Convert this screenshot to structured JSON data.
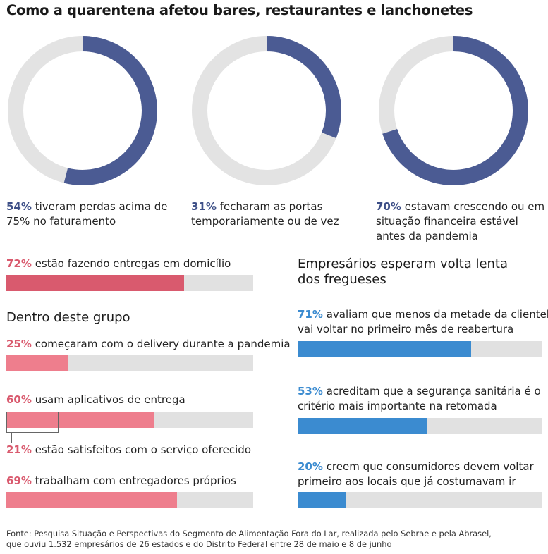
{
  "title": "Como a quarentena afetou bares, restaurantes e lanchonetes",
  "colors": {
    "donut_fill": "#4b5b93",
    "donut_track": "#e3e3e3",
    "delivery_main": "#d95a6e",
    "delivery_sub": "#ee7e8d",
    "delivery_pct": "#d95a6e",
    "owners_bar": "#3b8bd0",
    "owners_pct": "#3b8bd0",
    "donut_pct": "#3d4f87",
    "track": "#e1e1e1"
  },
  "chart_data": [
    {
      "type": "pie",
      "variant": "donut",
      "series": [
        {
          "value": 54,
          "pct": "54%",
          "label": "tiveram perdas acima de 75% no faturamento"
        },
        {
          "value": 31,
          "pct": "31%",
          "label": "fecharam as portas temporariamente ou de vez"
        },
        {
          "value": 70,
          "pct": "70%",
          "label": "estavam crescendo ou em situação financeira estável antes da pandemia"
        }
      ]
    },
    {
      "type": "bar",
      "orientation": "horizontal",
      "xlim": [
        0,
        100
      ],
      "main": {
        "value": 72,
        "pct": "72%",
        "label": "estão fazendo entregas em domicílio"
      },
      "subgroup_heading": "Dentro deste grupo",
      "items": [
        {
          "value": 25,
          "pct": "25%",
          "label": "começaram com o delivery durante a pandemia"
        },
        {
          "value": 60,
          "pct": "60%",
          "label": "usam aplicativos de entrega"
        },
        {
          "value": 21,
          "pct": "21%",
          "label": "estão satisfeitos com o serviço oferecido",
          "sub_of": "usam aplicativos de entrega"
        },
        {
          "value": 69,
          "pct": "69%",
          "label": "trabalham com entregadores próprios"
        }
      ]
    },
    {
      "type": "bar",
      "orientation": "horizontal",
      "xlim": [
        0,
        100
      ],
      "heading_lines": [
        "Empresários esperam volta lenta",
        "dos fregueses"
      ],
      "items": [
        {
          "value": 71,
          "pct": "71%",
          "label_lines": [
            "avaliam que menos da metade da clientela",
            "vai voltar no primeiro mês de reabertura"
          ]
        },
        {
          "value": 53,
          "pct": "53%",
          "label_lines": [
            "acreditam que a segurança sanitária é o",
            "critério mais importante na retomada"
          ]
        },
        {
          "value": 20,
          "pct": "20%",
          "label_lines": [
            "creem que consumidores devem voltar",
            "primeiro aos locais que já costumavam ir"
          ]
        }
      ]
    }
  ],
  "source_lines": [
    "Fonte: Pesquisa Situação e Perspectivas do Segmento de Alimentação Fora do Lar, realizada pelo Sebrae e pela Abrasel,",
    "que ouviu 1.532 empresários de 26 estados e do Distrito Federal entre 28 de maio e 8 de junho"
  ]
}
